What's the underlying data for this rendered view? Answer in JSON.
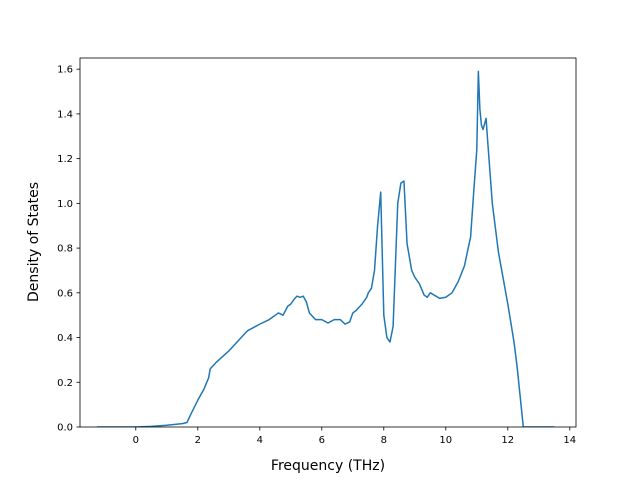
{
  "chart_data": {
    "type": "line",
    "title": "",
    "xlabel": "Frequency (THz)",
    "ylabel": "Density of States",
    "xlim": [
      -1.8,
      14.2
    ],
    "ylim": [
      0.0,
      1.65
    ],
    "x_ticks": [
      0,
      2,
      4,
      6,
      8,
      10,
      12,
      14
    ],
    "y_ticks": [
      0.0,
      0.2,
      0.4,
      0.6,
      0.8,
      1.0,
      1.2,
      1.4,
      1.6
    ],
    "x_tick_labels": [
      "0",
      "2",
      "4",
      "6",
      "8",
      "10",
      "12",
      "14"
    ],
    "y_tick_labels": [
      "0.0",
      "0.2",
      "0.4",
      "0.6",
      "0.8",
      "1.0",
      "1.2",
      "1.4",
      "1.6"
    ],
    "grid": false,
    "line_color": "#1f77b4",
    "series": [
      {
        "x": [
          -1.25,
          0.0,
          0.5,
          1.0,
          1.5,
          1.65,
          1.75,
          2.0,
          2.2,
          2.35,
          2.4,
          2.6,
          3.0,
          3.4,
          3.6,
          4.0,
          4.3,
          4.5,
          4.6,
          4.75,
          4.9,
          5.0,
          5.1,
          5.2,
          5.3,
          5.4,
          5.5,
          5.6,
          5.8,
          6.0,
          6.2,
          6.4,
          6.6,
          6.75,
          6.9,
          7.0,
          7.1,
          7.3,
          7.45,
          7.5,
          7.6,
          7.7,
          7.75,
          7.8,
          7.9,
          8.0,
          8.1,
          8.2,
          8.3,
          8.45,
          8.55,
          8.65,
          8.75,
          8.9,
          9.0,
          9.15,
          9.3,
          9.4,
          9.5,
          9.8,
          10.0,
          10.2,
          10.4,
          10.6,
          10.8,
          10.9,
          11.0,
          11.05,
          11.1,
          11.15,
          11.2,
          11.3,
          11.35,
          11.5,
          11.7,
          12.0,
          12.2,
          12.3,
          12.5,
          13.0,
          13.5
        ],
        "values": [
          0.0,
          0.0,
          0.003,
          0.008,
          0.015,
          0.02,
          0.05,
          0.12,
          0.17,
          0.22,
          0.26,
          0.29,
          0.34,
          0.4,
          0.43,
          0.46,
          0.48,
          0.5,
          0.51,
          0.5,
          0.54,
          0.55,
          0.57,
          0.585,
          0.58,
          0.585,
          0.56,
          0.51,
          0.48,
          0.48,
          0.465,
          0.48,
          0.48,
          0.46,
          0.47,
          0.51,
          0.52,
          0.55,
          0.58,
          0.6,
          0.62,
          0.7,
          0.8,
          0.9,
          1.05,
          0.5,
          0.4,
          0.38,
          0.45,
          1.0,
          1.09,
          1.1,
          0.82,
          0.7,
          0.67,
          0.64,
          0.59,
          0.58,
          0.6,
          0.575,
          0.58,
          0.6,
          0.65,
          0.72,
          0.85,
          1.05,
          1.24,
          1.59,
          1.42,
          1.35,
          1.33,
          1.38,
          1.28,
          1.0,
          0.78,
          0.55,
          0.38,
          0.27,
          0.0,
          0.0,
          0.0
        ]
      }
    ]
  }
}
